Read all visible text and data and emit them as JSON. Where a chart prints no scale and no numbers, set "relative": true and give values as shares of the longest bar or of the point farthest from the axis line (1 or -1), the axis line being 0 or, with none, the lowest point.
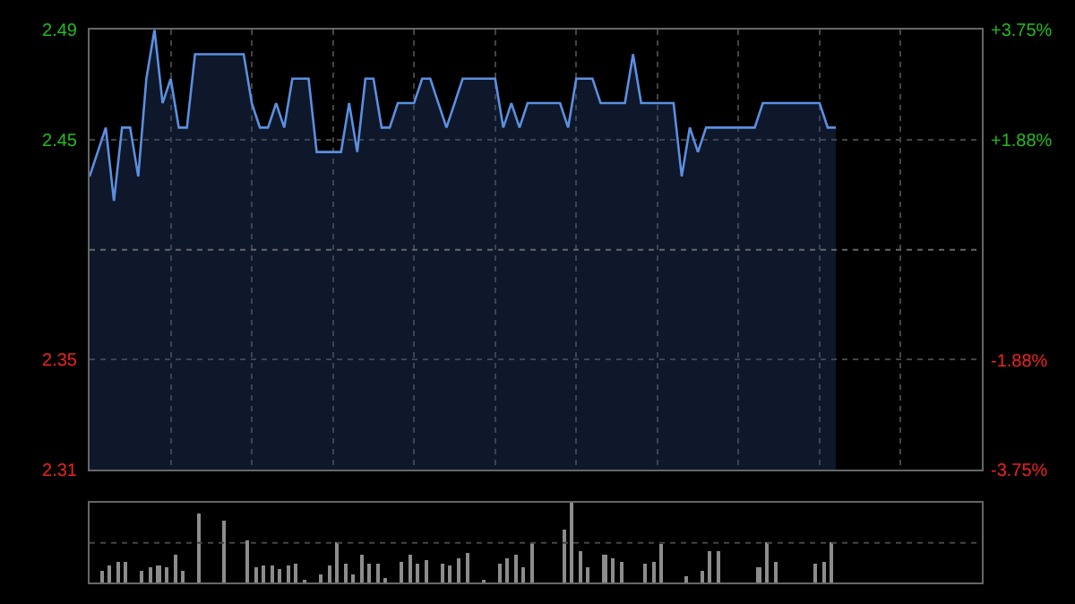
{
  "chart_data": [
    {
      "type": "area",
      "categories": [
        null,
        null,
        null,
        null,
        null,
        null,
        null,
        null,
        null,
        null,
        null,
        null,
        null,
        null,
        null,
        null,
        null,
        null,
        null,
        null,
        null,
        null,
        null,
        null,
        null,
        null,
        null,
        null,
        null,
        null,
        null,
        null,
        null,
        null,
        null,
        null,
        null,
        null,
        null,
        null,
        null,
        null,
        null,
        null,
        null,
        null,
        null,
        null,
        null,
        null,
        null,
        null,
        null,
        null,
        null,
        null,
        null,
        null,
        null,
        null,
        null,
        null,
        null,
        null,
        null,
        null,
        null,
        null,
        null,
        null,
        null,
        null,
        null,
        null,
        null,
        null,
        null,
        null,
        null,
        null,
        null,
        null,
        null,
        null,
        null,
        null,
        null,
        null,
        null,
        null,
        null,
        null,
        null,
        null,
        null,
        null,
        null,
        null,
        null,
        null,
        null,
        null,
        null,
        null,
        null,
        null,
        null,
        null,
        null,
        null
      ],
      "series": [
        {
          "color": "#5b8fe0",
          "values": [
            2.43,
            2.44,
            2.45,
            2.42,
            2.45,
            2.45,
            2.43,
            2.47,
            2.49,
            2.46,
            2.47,
            2.45,
            2.45,
            2.48,
            2.48,
            2.48,
            2.48,
            2.48,
            2.48,
            2.48,
            2.46,
            2.45,
            2.45,
            2.46,
            2.45,
            2.47,
            2.47,
            2.47,
            2.44,
            2.44,
            2.44,
            2.44,
            2.46,
            2.44,
            2.47,
            2.47,
            2.45,
            2.45,
            2.46,
            2.46,
            2.46,
            2.47,
            2.47,
            2.46,
            2.45,
            2.46,
            2.47,
            2.47,
            2.47,
            2.47,
            2.47,
            2.45,
            2.46,
            2.45,
            2.46,
            2.46,
            2.46,
            2.46,
            2.46,
            2.45,
            2.47,
            2.47,
            2.47,
            2.46,
            2.46,
            2.46,
            2.46,
            2.48,
            2.46,
            2.46,
            2.46,
            2.46,
            2.46,
            2.43,
            2.45,
            2.44,
            2.45,
            2.45,
            2.45,
            2.45,
            2.45,
            2.45,
            2.45,
            2.46,
            2.46,
            2.46,
            2.46,
            2.46,
            2.46,
            2.46,
            2.46,
            2.45,
            2.45,
            null,
            null,
            null,
            null,
            null,
            null,
            null,
            null,
            null,
            null,
            null,
            null,
            null,
            null,
            null,
            null,
            null
          ]
        }
      ],
      "ylim": [
        2.31,
        2.49
      ],
      "yticks": [
        2.49,
        {
          "value": 2.445,
          "label": "2.45"
        },
        {
          "value": 2.355,
          "label": "2.35"
        },
        2.31
      ],
      "y2lim": [
        -3.75,
        3.75
      ],
      "y2ticks": [
        {
          "value": 3.75,
          "label": "+3.75%"
        },
        {
          "value": 1.88,
          "label": "+1.88%"
        },
        {
          "value": -1.88,
          "label": "-1.88%"
        },
        {
          "value": -3.75,
          "label": "-3.75%"
        }
      ],
      "ref_lines": [
        {
          "axis": "y",
          "value": 2.4,
          "color": "#666666",
          "line_style": "dotted"
        }
      ],
      "grid": true,
      "line_style": "solid",
      "tick_labels": "y"
    },
    {
      "type": "bar",
      "relative": true,
      "categories": [
        null,
        null,
        null,
        null,
        null,
        null,
        null,
        null,
        null,
        null,
        null,
        null,
        null,
        null,
        null,
        null,
        null,
        null,
        null,
        null,
        null,
        null,
        null,
        null,
        null,
        null,
        null,
        null,
        null,
        null,
        null,
        null,
        null,
        null,
        null,
        null,
        null,
        null,
        null,
        null,
        null,
        null,
        null,
        null,
        null,
        null,
        null,
        null,
        null,
        null,
        null,
        null,
        null,
        null,
        null,
        null,
        null,
        null,
        null,
        null,
        null,
        null,
        null,
        null,
        null,
        null,
        null,
        null,
        null,
        null,
        null,
        null,
        null,
        null,
        null,
        null,
        null,
        null,
        null,
        null,
        null,
        null,
        null,
        null,
        null,
        null,
        null,
        null,
        null,
        null,
        null,
        null,
        null,
        null,
        null,
        null,
        null,
        null,
        null,
        null,
        null,
        null,
        null,
        null,
        null,
        null,
        null,
        null,
        null,
        null
      ],
      "series": [
        {
          "color": "#8c8c8c",
          "values": [
            null,
            0.14,
            0.21,
            0.26,
            0.26,
            null,
            0.14,
            0.19,
            0.21,
            0.19,
            0.36,
            0.14,
            null,
            0.86,
            null,
            null,
            0.77,
            null,
            null,
            0.52,
            0.19,
            0.21,
            0.21,
            0.18,
            0.21,
            0.24,
            0.04,
            null,
            0.11,
            0.21,
            0.5,
            0.24,
            0.11,
            0.36,
            0.24,
            0.24,
            0.07,
            null,
            0.25,
            0.36,
            0.24,
            0.29,
            null,
            0.24,
            0.21,
            0.31,
            0.38,
            null,
            0.04,
            null,
            0.24,
            0.31,
            0.36,
            0.19,
            0.5,
            null,
            null,
            null,
            0.66,
            1.0,
            0.39,
            0.19,
            null,
            0.34,
            0.31,
            0.26,
            null,
            null,
            0.24,
            0.26,
            0.48,
            null,
            null,
            0.09,
            null,
            0.14,
            0.4,
            0.4,
            null,
            null,
            null,
            null,
            0.19,
            0.5,
            0.26,
            null,
            null,
            null,
            null,
            0.24,
            0.26,
            0.5,
            null,
            null,
            null,
            null,
            null,
            null,
            null,
            null,
            null,
            null,
            null,
            null,
            null,
            null,
            null,
            null,
            null,
            null
          ]
        }
      ],
      "ref_lines": [
        {
          "axis": "y",
          "value": 0.5,
          "color": "#444444",
          "line_style": "dotted"
        }
      ],
      "tick_labels": false
    }
  ]
}
